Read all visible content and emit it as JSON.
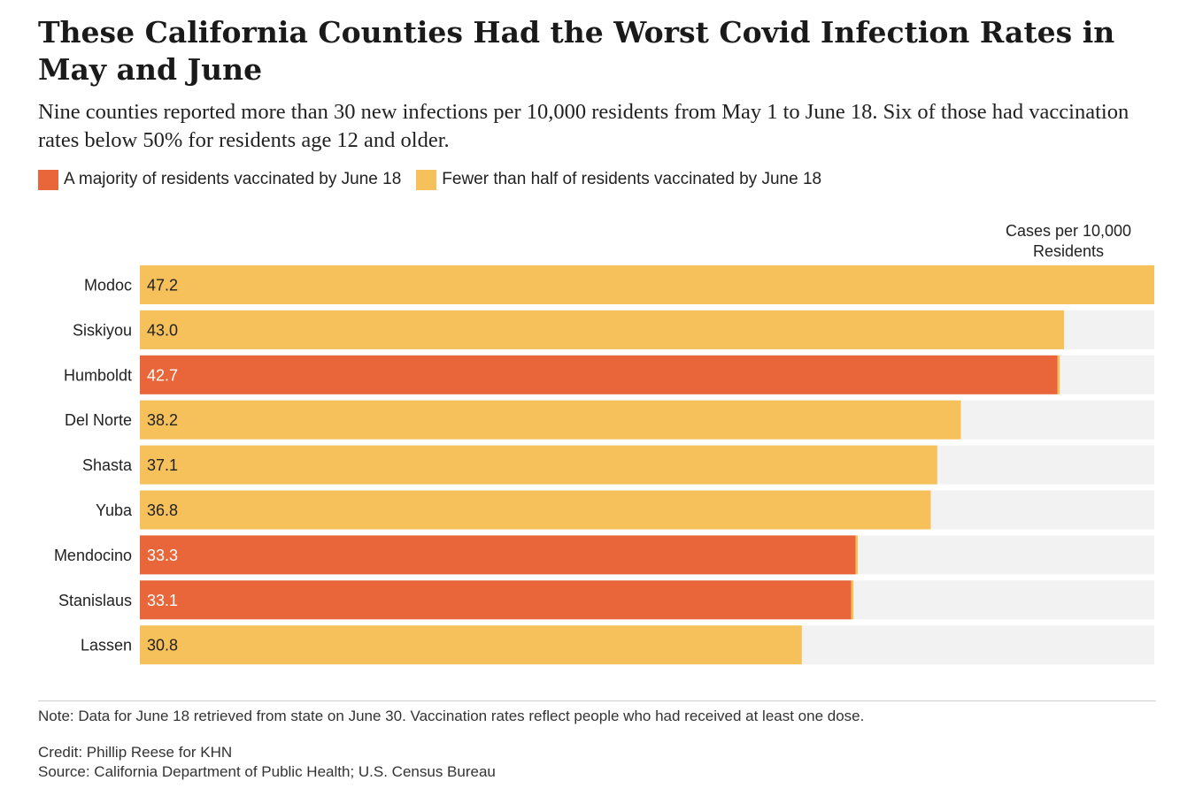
{
  "header": {
    "title": "These California Counties Had the Worst Covid Infection Rates in May and June",
    "subtitle": "Nine counties reported more than 30 new infections per 10,000 residents from May 1 to June 18. Six of those had vaccination rates below 50% for residents age 12 and older."
  },
  "legend": {
    "majority_label": "A majority of residents vaccinated by June 18",
    "fewer_label": "Fewer than half of residents vaccinated by June 18"
  },
  "colors": {
    "majority": "#e8663a",
    "fewer": "#f6c15a",
    "track": "#f2f2f2"
  },
  "chart_data": {
    "type": "bar",
    "orientation": "horizontal",
    "value_header": "Cases per 10,000 Residents",
    "value_header_lines": [
      "Cases per 10,000",
      "Residents"
    ],
    "xlim": [
      0,
      47.2
    ],
    "grid": false,
    "legend_placement": "top-left",
    "categories": [
      "Modoc",
      "Siskiyou",
      "Humboldt",
      "Del Norte",
      "Shasta",
      "Yuba",
      "Mendocino",
      "Stanislaus",
      "Lassen"
    ],
    "values": [
      47.2,
      43.0,
      42.7,
      38.2,
      37.1,
      36.8,
      33.3,
      33.1,
      30.8
    ],
    "value_labels": [
      "47.2",
      "43.0",
      "42.7",
      "38.2",
      "37.1",
      "36.8",
      "33.3",
      "33.1",
      "30.8"
    ],
    "vaccination_group": [
      "fewer",
      "fewer",
      "majority",
      "fewer",
      "fewer",
      "fewer",
      "majority",
      "majority",
      "fewer"
    ]
  },
  "footer": {
    "note": "Note: Data for June 18 retrieved from state on June 30. Vaccination rates reflect people who had received at least one dose.",
    "credit": "Credit: Phillip Reese for KHN",
    "source": "Source: California Department of Public Health; U.S. Census Bureau"
  }
}
